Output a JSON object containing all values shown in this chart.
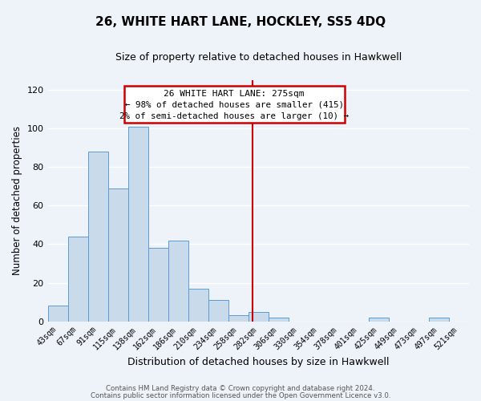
{
  "title": "26, WHITE HART LANE, HOCKLEY, SS5 4DQ",
  "subtitle": "Size of property relative to detached houses in Hawkwell",
  "xlabel": "Distribution of detached houses by size in Hawkwell",
  "ylabel": "Number of detached properties",
  "bar_labels": [
    "43sqm",
    "67sqm",
    "91sqm",
    "115sqm",
    "138sqm",
    "162sqm",
    "186sqm",
    "210sqm",
    "234sqm",
    "258sqm",
    "282sqm",
    "306sqm",
    "330sqm",
    "354sqm",
    "378sqm",
    "401sqm",
    "425sqm",
    "449sqm",
    "473sqm",
    "497sqm",
    "521sqm"
  ],
  "bar_values": [
    8,
    44,
    88,
    69,
    101,
    38,
    42,
    17,
    11,
    3,
    5,
    2,
    0,
    0,
    0,
    0,
    2,
    0,
    0,
    2,
    0
  ],
  "bar_color": "#c9daea",
  "bar_edge_color": "#5b9bd5",
  "ylim": [
    0,
    125
  ],
  "yticks": [
    0,
    20,
    40,
    60,
    80,
    100,
    120
  ],
  "annotation_title": "26 WHITE HART LANE: 275sqm",
  "annotation_line1": "← 98% of detached houses are smaller (415)",
  "annotation_line2": "2% of semi-detached houses are larger (10) →",
  "footnote1": "Contains HM Land Registry data © Crown copyright and database right 2024.",
  "footnote2": "Contains public sector information licensed under the Open Government Licence v3.0.",
  "bg_color": "#eef2f9",
  "grid_color": "#ffffff",
  "annotation_box_color": "#ffffff",
  "annotation_box_edge": "#cc0000",
  "property_line_color": "#cc0000",
  "title_fontsize": 11,
  "subtitle_fontsize": 9,
  "ylabel_fontsize": 8.5,
  "xlabel_fontsize": 9
}
